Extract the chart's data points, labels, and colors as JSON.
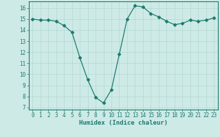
{
  "title": "",
  "xlabel": "Humidex (Indice chaleur)",
  "ylabel": "",
  "x": [
    0,
    1,
    2,
    3,
    4,
    5,
    6,
    7,
    8,
    9,
    10,
    11,
    12,
    13,
    14,
    15,
    16,
    17,
    18,
    19,
    20,
    21,
    22,
    23
  ],
  "y": [
    15.0,
    14.9,
    14.9,
    14.8,
    14.4,
    13.8,
    11.5,
    9.5,
    7.9,
    7.4,
    8.6,
    11.8,
    15.0,
    16.2,
    16.1,
    15.5,
    15.2,
    14.8,
    14.5,
    14.6,
    14.9,
    14.8,
    14.9,
    15.1
  ],
  "line_color": "#1a7a6e",
  "marker": "D",
  "marker_size": 2.5,
  "bg_color": "#ceeae6",
  "grid_color": "#b0d8d3",
  "ylim": [
    6.8,
    16.6
  ],
  "yticks": [
    7,
    8,
    9,
    10,
    11,
    12,
    13,
    14,
    15,
    16
  ],
  "xlim": [
    -0.5,
    23.5
  ],
  "xticks": [
    0,
    1,
    2,
    3,
    4,
    5,
    6,
    7,
    8,
    9,
    10,
    11,
    12,
    13,
    14,
    15,
    16,
    17,
    18,
    19,
    20,
    21,
    22,
    23
  ],
  "tick_fontsize": 5.5,
  "xlabel_fontsize": 6.5,
  "axes_color": "#1a7a6e",
  "spine_color": "#1a7a6e"
}
